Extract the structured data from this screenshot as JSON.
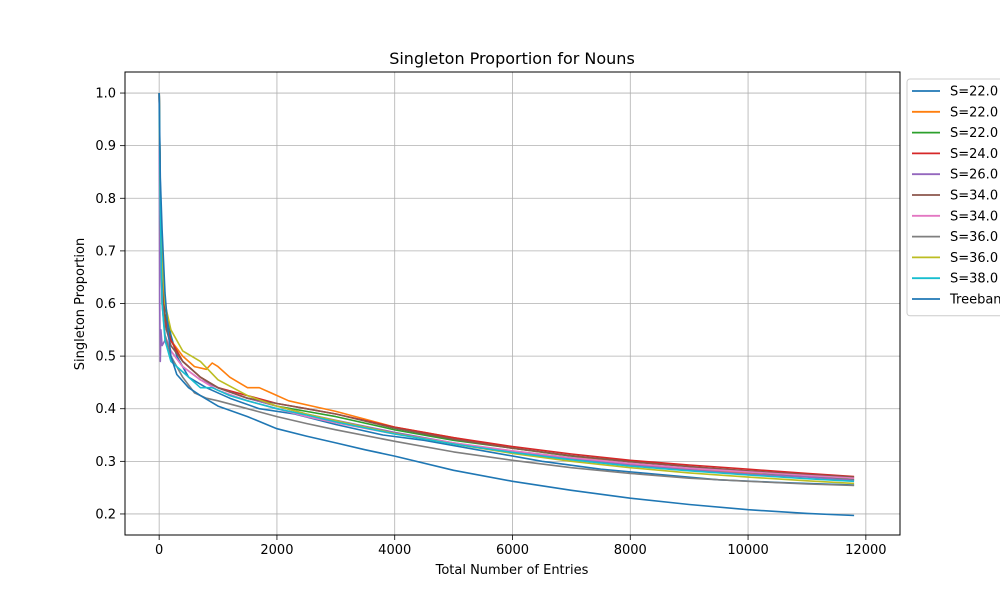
{
  "chart_data": {
    "type": "line",
    "title": "Singleton Proportion for Nouns",
    "xlabel": "Total Number of Entries",
    "ylabel": "Singleton Proportion",
    "xlim": [
      -580,
      12580
    ],
    "ylim": [
      0.16,
      1.04
    ],
    "xticks": [
      0,
      2000,
      4000,
      6000,
      8000,
      10000,
      12000
    ],
    "yticks": [
      0.2,
      0.3,
      0.4,
      0.5,
      0.6,
      0.7,
      0.8,
      0.9,
      1.0
    ],
    "grid": true,
    "legend_position": "outside right, top (clipped)",
    "series": [
      {
        "name": "S=22.0",
        "color": "#1f77b4",
        "x": [
          0,
          20,
          50,
          100,
          200,
          300,
          500,
          800,
          1200,
          1700,
          2300,
          3000,
          3800,
          4500,
          5500,
          6500,
          7500,
          8500,
          9500,
          10500,
          11800
        ],
        "y": [
          1.0,
          0.82,
          0.7,
          0.6,
          0.54,
          0.5,
          0.46,
          0.44,
          0.42,
          0.4,
          0.39,
          0.37,
          0.35,
          0.34,
          0.32,
          0.3,
          0.285,
          0.275,
          0.265,
          0.26,
          0.255
        ]
      },
      {
        "name": "S=22.0",
        "color": "#ff7f0e",
        "x": [
          0,
          20,
          50,
          100,
          200,
          400,
          600,
          800,
          900,
          1000,
          1200,
          1500,
          1700,
          1900,
          2200,
          2600,
          3000,
          4000,
          5000,
          6000,
          7000,
          8000,
          9000,
          10000,
          11000,
          11800
        ],
        "y": [
          1.0,
          0.78,
          0.62,
          0.56,
          0.53,
          0.5,
          0.48,
          0.475,
          0.487,
          0.48,
          0.46,
          0.44,
          0.44,
          0.43,
          0.415,
          0.405,
          0.395,
          0.365,
          0.345,
          0.325,
          0.31,
          0.295,
          0.285,
          0.278,
          0.272,
          0.268
        ]
      },
      {
        "name": "S=22.0",
        "color": "#2ca02c",
        "x": [
          0,
          20,
          50,
          100,
          200,
          400,
          700,
          1000,
          1500,
          2000,
          2500,
          3000,
          4000,
          5000,
          6000,
          7000,
          8000,
          9000,
          10000,
          11000,
          11800
        ],
        "y": [
          1.0,
          0.8,
          0.65,
          0.58,
          0.53,
          0.49,
          0.46,
          0.44,
          0.42,
          0.405,
          0.395,
          0.385,
          0.36,
          0.34,
          0.325,
          0.31,
          0.3,
          0.29,
          0.28,
          0.272,
          0.265
        ]
      },
      {
        "name": "S=24.0",
        "color": "#d62728",
        "x": [
          0,
          20,
          50,
          100,
          200,
          400,
          700,
          1000,
          1500,
          2000,
          2500,
          3000,
          4000,
          5000,
          6000,
          7000,
          8000,
          9000,
          10000,
          11000,
          11800
        ],
        "y": [
          1.0,
          0.79,
          0.64,
          0.57,
          0.53,
          0.49,
          0.46,
          0.44,
          0.425,
          0.41,
          0.4,
          0.39,
          0.365,
          0.345,
          0.328,
          0.314,
          0.302,
          0.293,
          0.285,
          0.277,
          0.271
        ]
      },
      {
        "name": "S=26.0",
        "color": "#9467bd",
        "x": [
          0,
          10,
          20,
          30,
          50,
          100,
          200,
          400,
          700,
          1000,
          1500,
          2000,
          2500,
          3000,
          4000,
          5000,
          6000,
          7000,
          8000,
          9000,
          10000,
          11000,
          11800
        ],
        "y": [
          1.0,
          0.6,
          0.49,
          0.55,
          0.52,
          0.53,
          0.51,
          0.48,
          0.455,
          0.44,
          0.42,
          0.405,
          0.39,
          0.378,
          0.355,
          0.335,
          0.318,
          0.305,
          0.293,
          0.284,
          0.276,
          0.27,
          0.264
        ]
      },
      {
        "name": "S=34.0",
        "color": "#8c564b",
        "x": [
          0,
          20,
          50,
          100,
          200,
          400,
          700,
          1000,
          1500,
          2000,
          2500,
          3000,
          4000,
          5000,
          6000,
          7000,
          8000,
          9000,
          10000,
          11000,
          11800
        ],
        "y": [
          1.0,
          0.78,
          0.63,
          0.56,
          0.52,
          0.49,
          0.46,
          0.44,
          0.42,
          0.41,
          0.4,
          0.39,
          0.363,
          0.342,
          0.325,
          0.311,
          0.299,
          0.29,
          0.282,
          0.275,
          0.27
        ]
      },
      {
        "name": "S=34.0",
        "color": "#e377c2",
        "x": [
          0,
          20,
          50,
          100,
          200,
          400,
          700,
          1000,
          1500,
          2000,
          2500,
          3000,
          4000,
          5000,
          6000,
          7000,
          8000,
          9000,
          10000,
          11000,
          11800
        ],
        "y": [
          1.0,
          0.76,
          0.6,
          0.54,
          0.51,
          0.48,
          0.455,
          0.435,
          0.415,
          0.4,
          0.385,
          0.373,
          0.352,
          0.335,
          0.32,
          0.307,
          0.296,
          0.287,
          0.28,
          0.273,
          0.268
        ]
      },
      {
        "name": "S=36.0",
        "color": "#7f7f7f",
        "x": [
          0,
          20,
          50,
          100,
          200,
          400,
          600,
          800,
          1000,
          1500,
          2000,
          2500,
          3000,
          4000,
          5000,
          6000,
          7000,
          8000,
          9000,
          10000,
          11000,
          11800
        ],
        "y": [
          1.0,
          0.75,
          0.6,
          0.54,
          0.5,
          0.46,
          0.43,
          0.42,
          0.415,
          0.4,
          0.385,
          0.372,
          0.36,
          0.338,
          0.318,
          0.302,
          0.288,
          0.277,
          0.268,
          0.262,
          0.257,
          0.254
        ]
      },
      {
        "name": "S=36.0",
        "color": "#bcbd22",
        "x": [
          0,
          20,
          50,
          100,
          200,
          400,
          700,
          1000,
          1500,
          2000,
          2500,
          3000,
          4000,
          5000,
          6000,
          7000,
          8000,
          9000,
          10000,
          11000,
          11800
        ],
        "y": [
          1.0,
          0.8,
          0.68,
          0.6,
          0.55,
          0.51,
          0.49,
          0.455,
          0.425,
          0.405,
          0.39,
          0.377,
          0.353,
          0.333,
          0.315,
          0.3,
          0.288,
          0.278,
          0.27,
          0.263,
          0.258
        ]
      },
      {
        "name": "S=38.0",
        "color": "#17becf",
        "x": [
          0,
          20,
          50,
          100,
          200,
          400,
          600,
          700,
          900,
          1200,
          1500,
          2000,
          2500,
          3000,
          4000,
          5000,
          6000,
          7000,
          8000,
          9000,
          10000,
          11000,
          11800
        ],
        "y": [
          1.0,
          0.78,
          0.6,
          0.53,
          0.49,
          0.47,
          0.45,
          0.44,
          0.44,
          0.425,
          0.415,
          0.4,
          0.388,
          0.375,
          0.352,
          0.333,
          0.317,
          0.303,
          0.291,
          0.282,
          0.274,
          0.267,
          0.262
        ]
      },
      {
        "name": "Treebank",
        "color": "#1f77b4",
        "x": [
          0,
          20,
          50,
          100,
          150,
          200,
          300,
          500,
          700,
          1000,
          1500,
          2000,
          2500,
          3000,
          3500,
          4000,
          5000,
          6000,
          7000,
          8000,
          9000,
          10000,
          11000,
          11800
        ],
        "y": [
          1.0,
          0.84,
          0.74,
          0.62,
          0.55,
          0.5,
          0.465,
          0.44,
          0.425,
          0.405,
          0.385,
          0.362,
          0.348,
          0.335,
          0.322,
          0.31,
          0.283,
          0.262,
          0.245,
          0.23,
          0.218,
          0.208,
          0.201,
          0.197
        ]
      }
    ]
  }
}
